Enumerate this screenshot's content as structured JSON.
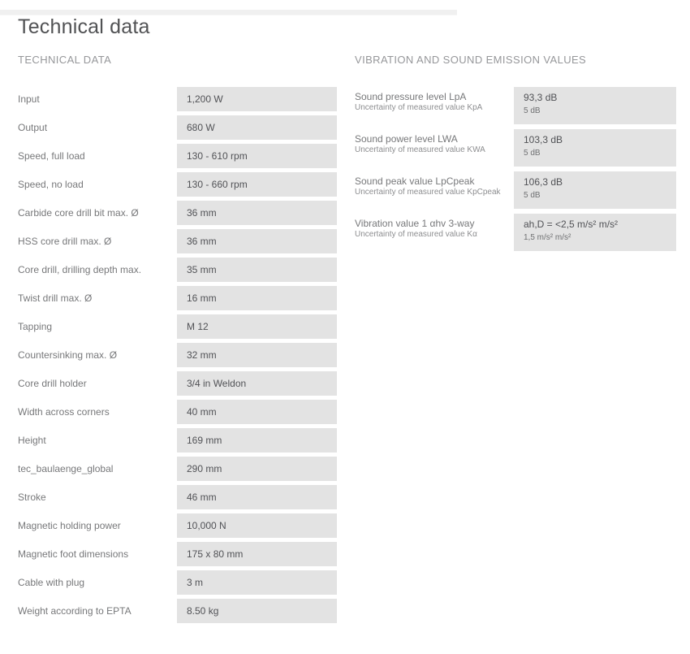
{
  "page": {
    "title": "Technical data"
  },
  "colors": {
    "value_box_background": "#e3e3e3",
    "label_text": "#77787a",
    "value_text": "#515256",
    "section_heading_text": "#96979a",
    "title_text": "#515254"
  },
  "technical": {
    "heading": "TECHNICAL DATA",
    "rows": [
      {
        "label": "Input",
        "value": "1,200 W"
      },
      {
        "label": "Output",
        "value": "680 W"
      },
      {
        "label": "Speed, full load",
        "value": "130 - 610 rpm"
      },
      {
        "label": "Speed, no load",
        "value": "130 - 660 rpm"
      },
      {
        "label": "Carbide core drill bit max. Ø",
        "value": "36 mm"
      },
      {
        "label": "HSS core drill max. Ø",
        "value": "36 mm"
      },
      {
        "label": "Core drill, drilling depth max.",
        "value": "35 mm"
      },
      {
        "label": "Twist drill max. Ø",
        "value": "16 mm"
      },
      {
        "label": "Tapping",
        "value": "M 12"
      },
      {
        "label": "Countersinking max. Ø",
        "value": "32 mm"
      },
      {
        "label": "Core drill holder",
        "value": "3/4 in Weldon"
      },
      {
        "label": "Width across corners",
        "value": "40 mm"
      },
      {
        "label": "Height",
        "value": "169 mm"
      },
      {
        "label": "tec_baulaenge_global",
        "value": "290 mm"
      },
      {
        "label": "Stroke",
        "value": "46 mm"
      },
      {
        "label": "Magnetic holding power",
        "value": "10,000 N"
      },
      {
        "label": "Magnetic foot dimensions",
        "value": "175 x 80 mm"
      },
      {
        "label": "Cable with plug",
        "value": "3 m"
      },
      {
        "label": "Weight according to EPTA",
        "value": "8.50 kg"
      }
    ]
  },
  "vibration": {
    "heading": "VIBRATION AND SOUND EMISSION VALUES",
    "rows": [
      {
        "label": "Sound pressure level LpA",
        "sublabel": "Uncertainty of measured value KpA",
        "value": "93,3 dB",
        "subvalue": "5 dB"
      },
      {
        "label": "Sound power level LWA",
        "sublabel": "Uncertainty of measured value KWA",
        "value": "103,3 dB",
        "subvalue": "5 dB"
      },
      {
        "label": "Sound peak value LpCpeak",
        "sublabel": "Uncertainty of measured value KpCpeak",
        "value": "106,3 dB",
        "subvalue": "5 dB"
      },
      {
        "label": "Vibration value 1 αhv 3-way",
        "sublabel": "Uncertainty of measured value Kα",
        "value": "ah,D = <2,5 m/s² m/s²",
        "subvalue": "1,5 m/s² m/s²"
      }
    ]
  }
}
